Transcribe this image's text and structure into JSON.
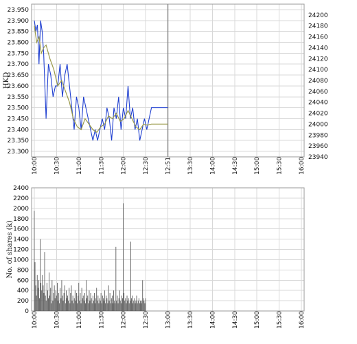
{
  "chart_data": [
    {
      "type": "line",
      "title": "",
      "ylabel": "HKD",
      "ylim": [
        23.275,
        23.975
      ],
      "y2lim": [
        23940,
        24220
      ],
      "grid": true,
      "yticks": [
        "23.950",
        "23.900",
        "23.850",
        "23.800",
        "23.750",
        "23.700",
        "23.650",
        "23.600",
        "23.550",
        "23.500",
        "23.450",
        "23.400",
        "23.350",
        "23.300"
      ],
      "y2ticks": [
        "24200",
        "24180",
        "24160",
        "24140",
        "24120",
        "24100",
        "24080",
        "24060",
        "24040",
        "24020",
        "24000",
        "23980",
        "23960",
        "23940"
      ],
      "xticks": [
        "10:00",
        "10:30",
        "11:00",
        "11:30",
        "12:00",
        "12:30",
        "12:51",
        "13:30",
        "14:00",
        "14:30",
        "15:00",
        "15:30",
        "16:00"
      ],
      "current_time_label": "12:51",
      "series": [
        {
          "color": "#1f3fd0",
          "x": [
            "10:00",
            "10:02",
            "10:04",
            "10:06",
            "10:08",
            "10:10",
            "10:12",
            "10:15",
            "10:18",
            "10:21",
            "10:24",
            "10:27",
            "10:30",
            "10:33",
            "10:36",
            "10:39",
            "10:42",
            "10:45",
            "10:48",
            "10:51",
            "10:54",
            "10:57",
            "11:00",
            "11:03",
            "11:06",
            "11:09",
            "11:12",
            "11:15",
            "11:18",
            "11:21",
            "11:24",
            "11:27",
            "11:30",
            "11:33",
            "11:36",
            "11:39",
            "11:42",
            "11:45",
            "11:48",
            "11:51",
            "11:54",
            "11:57",
            "12:00",
            "12:03",
            "12:06",
            "12:09",
            "12:12",
            "12:15",
            "12:18",
            "12:21",
            "12:24",
            "12:27",
            "12:30",
            "12:40",
            "12:51"
          ],
          "values": [
            23.9,
            23.85,
            23.88,
            23.7,
            23.9,
            23.85,
            23.75,
            23.45,
            23.7,
            23.65,
            23.55,
            23.6,
            23.6,
            23.7,
            23.55,
            23.65,
            23.7,
            23.6,
            23.5,
            23.4,
            23.55,
            23.5,
            23.4,
            23.55,
            23.5,
            23.45,
            23.4,
            23.35,
            23.4,
            23.35,
            23.4,
            23.45,
            23.4,
            23.5,
            23.45,
            23.35,
            23.5,
            23.45,
            23.55,
            23.4,
            23.5,
            23.45,
            23.6,
            23.45,
            23.5,
            23.4,
            23.45,
            23.35,
            23.4,
            23.45,
            23.4,
            23.45,
            23.5,
            23.5,
            23.5
          ]
        },
        {
          "color": "#9a9a4a",
          "x": [
            "10:00",
            "10:03",
            "10:06",
            "10:09",
            "10:12",
            "10:15",
            "10:20",
            "10:25",
            "10:30",
            "10:35",
            "10:40",
            "10:45",
            "10:50",
            "10:55",
            "11:00",
            "11:05",
            "11:10",
            "11:15",
            "11:20",
            "11:25",
            "11:30",
            "11:35",
            "11:40",
            "11:45",
            "11:50",
            "11:55",
            "12:00",
            "12:05",
            "12:10",
            "12:15",
            "12:20",
            "12:25",
            "12:30",
            "12:40",
            "12:51"
          ],
          "values": [
            24180,
            24150,
            24160,
            24130,
            24140,
            24145,
            24120,
            24100,
            24070,
            24080,
            24060,
            24040,
            24010,
            23995,
            23990,
            24010,
            24000,
            23990,
            23985,
            23995,
            24000,
            24015,
            24010,
            24020,
            24005,
            24010,
            24025,
            24010,
            23995,
            23990,
            24000,
            23998,
            24000,
            24000,
            24000
          ]
        }
      ]
    },
    {
      "type": "bar",
      "title": "",
      "ylabel": "No. of shares (k)",
      "ylim": [
        0,
        2400
      ],
      "grid": true,
      "yticks": [
        "2400",
        "2200",
        "2000",
        "1800",
        "1600",
        "1400",
        "1200",
        "1000",
        "800",
        "600",
        "400",
        "200",
        "0"
      ],
      "xticks": [
        "10:00",
        "10:30",
        "11:00",
        "11:30",
        "12:00",
        "12:30",
        "13:00",
        "13:30",
        "14:00",
        "14:30",
        "15:00",
        "15:30",
        "16:00"
      ],
      "color": "#555555",
      "x": [
        "10:00",
        "10:01",
        "10:02",
        "10:03",
        "10:04",
        "10:05",
        "10:06",
        "10:07",
        "10:08",
        "10:09",
        "10:10",
        "10:11",
        "10:12",
        "10:13",
        "10:14",
        "10:15",
        "10:16",
        "10:17",
        "10:18",
        "10:19",
        "10:20",
        "10:21",
        "10:22",
        "10:23",
        "10:24",
        "10:25",
        "10:26",
        "10:27",
        "10:28",
        "10:29",
        "10:30",
        "10:31",
        "10:32",
        "10:33",
        "10:34",
        "10:35",
        "10:36",
        "10:37",
        "10:38",
        "10:39",
        "10:40",
        "10:41",
        "10:42",
        "10:43",
        "10:44",
        "10:45",
        "10:46",
        "10:47",
        "10:48",
        "10:49",
        "10:50",
        "10:51",
        "10:52",
        "10:53",
        "10:54",
        "10:55",
        "10:56",
        "10:57",
        "10:58",
        "10:59",
        "11:00",
        "11:01",
        "11:02",
        "11:03",
        "11:04",
        "11:05",
        "11:06",
        "11:07",
        "11:08",
        "11:09",
        "11:10",
        "11:11",
        "11:12",
        "11:13",
        "11:14",
        "11:15",
        "11:16",
        "11:17",
        "11:18",
        "11:19",
        "11:20",
        "11:21",
        "11:22",
        "11:23",
        "11:24",
        "11:25",
        "11:26",
        "11:27",
        "11:28",
        "11:29",
        "11:30",
        "11:31",
        "11:32",
        "11:33",
        "11:34",
        "11:35",
        "11:36",
        "11:37",
        "11:38",
        "11:39",
        "11:40",
        "11:41",
        "11:42",
        "11:43",
        "11:44",
        "11:45",
        "11:46",
        "11:47",
        "11:48",
        "11:49",
        "11:50",
        "11:51",
        "11:52",
        "11:53",
        "11:54",
        "11:55",
        "11:56",
        "11:57",
        "11:58",
        "11:59",
        "12:00",
        "12:01",
        "12:02",
        "12:03",
        "12:04",
        "12:05",
        "12:06",
        "12:07",
        "12:08",
        "12:09",
        "12:10",
        "12:11",
        "12:12",
        "12:13",
        "12:14",
        "12:15",
        "12:16",
        "12:17",
        "12:18",
        "12:19",
        "12:20",
        "12:21",
        "12:22",
        "12:23",
        "12:24",
        "12:25",
        "12:26",
        "12:27",
        "12:28",
        "12:29",
        "12:30"
      ],
      "values": [
        1950,
        950,
        500,
        300,
        700,
        450,
        600,
        250,
        1400,
        550,
        400,
        700,
        500,
        350,
        1150,
        300,
        200,
        550,
        400,
        250,
        750,
        300,
        450,
        150,
        600,
        200,
        350,
        500,
        250,
        400,
        300,
        550,
        200,
        350,
        150,
        450,
        250,
        600,
        300,
        200,
        350,
        500,
        150,
        400,
        250,
        300,
        200,
        450,
        150,
        350,
        500,
        200,
        300,
        150,
        250,
        400,
        200,
        350,
        150,
        300,
        550,
        200,
        350,
        150,
        450,
        250,
        300,
        200,
        350,
        150,
        600,
        250,
        300,
        150,
        400,
        200,
        350,
        250,
        150,
        300,
        200,
        350,
        150,
        250,
        450,
        200,
        300,
        150,
        250,
        200,
        350,
        150,
        300,
        250,
        200,
        400,
        150,
        300,
        250,
        150,
        500,
        200,
        350,
        150,
        250,
        300,
        150,
        400,
        200,
        150,
        1250,
        200,
        300,
        150,
        250,
        400,
        200,
        150,
        300,
        250,
        2100,
        350,
        200,
        250,
        150,
        300,
        200,
        250,
        150,
        200,
        1350,
        250,
        300,
        150,
        200,
        250,
        150,
        200,
        300,
        150,
        200,
        250,
        150,
        200,
        150,
        200,
        600,
        250,
        200,
        150,
        250
      ]
    }
  ]
}
